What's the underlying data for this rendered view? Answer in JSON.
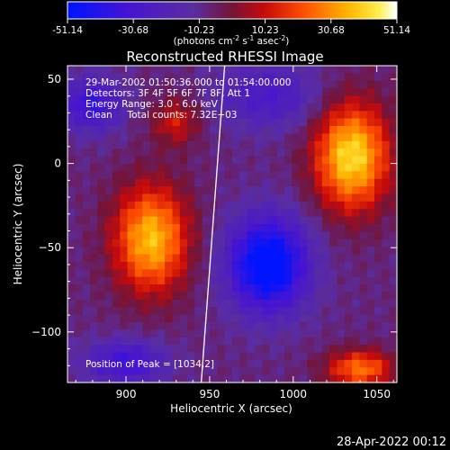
{
  "chart_data": {
    "type": "heatmap",
    "title": "Reconstructed RHESSI Image",
    "xlabel": "Heliocentric X (arcsec)",
    "ylabel": "Heliocentric Y (arcsec)",
    "xlim": [
      865,
      1062
    ],
    "ylim": [
      -130,
      58
    ],
    "x_ticks": [
      900,
      950,
      1000,
      1050
    ],
    "y_ticks": [
      50,
      0,
      -50,
      -100
    ],
    "colorbar": {
      "ticks": [
        "-51.14",
        "-30.68",
        "-10.23",
        "10.23",
        "30.68",
        "51.14"
      ],
      "range": [
        -51.14,
        51.14
      ],
      "units_text": "(photons cm",
      "units_exp1": "-2",
      "units_mid": " s",
      "units_exp2": "-1",
      "units_mid2": " asec",
      "units_exp3": "-2",
      "units_end": ")"
    },
    "info_lines": [
      "29-Mar-2002 01:50:36.000 to 01:54:00.000",
      "Detectors: 3F 4F 5F 6F 7F 8F, Att 1",
      "Energy Range: 3.0 - 6.0 keV",
      "Clean     Total counts: 7.32E+03"
    ],
    "peak_label": "Position of Peak = [1034,2]",
    "sources": [
      {
        "x": 915,
        "y": -45,
        "rx": 28,
        "ry": 40,
        "peak": 46
      },
      {
        "x": 1035,
        "y": 4,
        "rx": 28,
        "ry": 40,
        "peak": 51.14
      },
      {
        "x": 1040,
        "y": -122,
        "rx": 25,
        "ry": 14,
        "peak": 35
      },
      {
        "x": 985,
        "y": -60,
        "rx": 30,
        "ry": 35,
        "peak": -51.14
      },
      {
        "x": 880,
        "y": 35,
        "rx": 22,
        "ry": 20,
        "peak": -30
      },
      {
        "x": 985,
        "y": 40,
        "rx": 40,
        "ry": 25,
        "peak": -20
      },
      {
        "x": 930,
        "y": 25,
        "rx": 18,
        "ry": 18,
        "peak": 20
      },
      {
        "x": 900,
        "y": -118,
        "rx": 30,
        "ry": 16,
        "peak": -28
      }
    ],
    "limb": {
      "x_top": 959,
      "x_bottom": 945
    }
  },
  "timestamp": "28-Apr-2022 00:12"
}
